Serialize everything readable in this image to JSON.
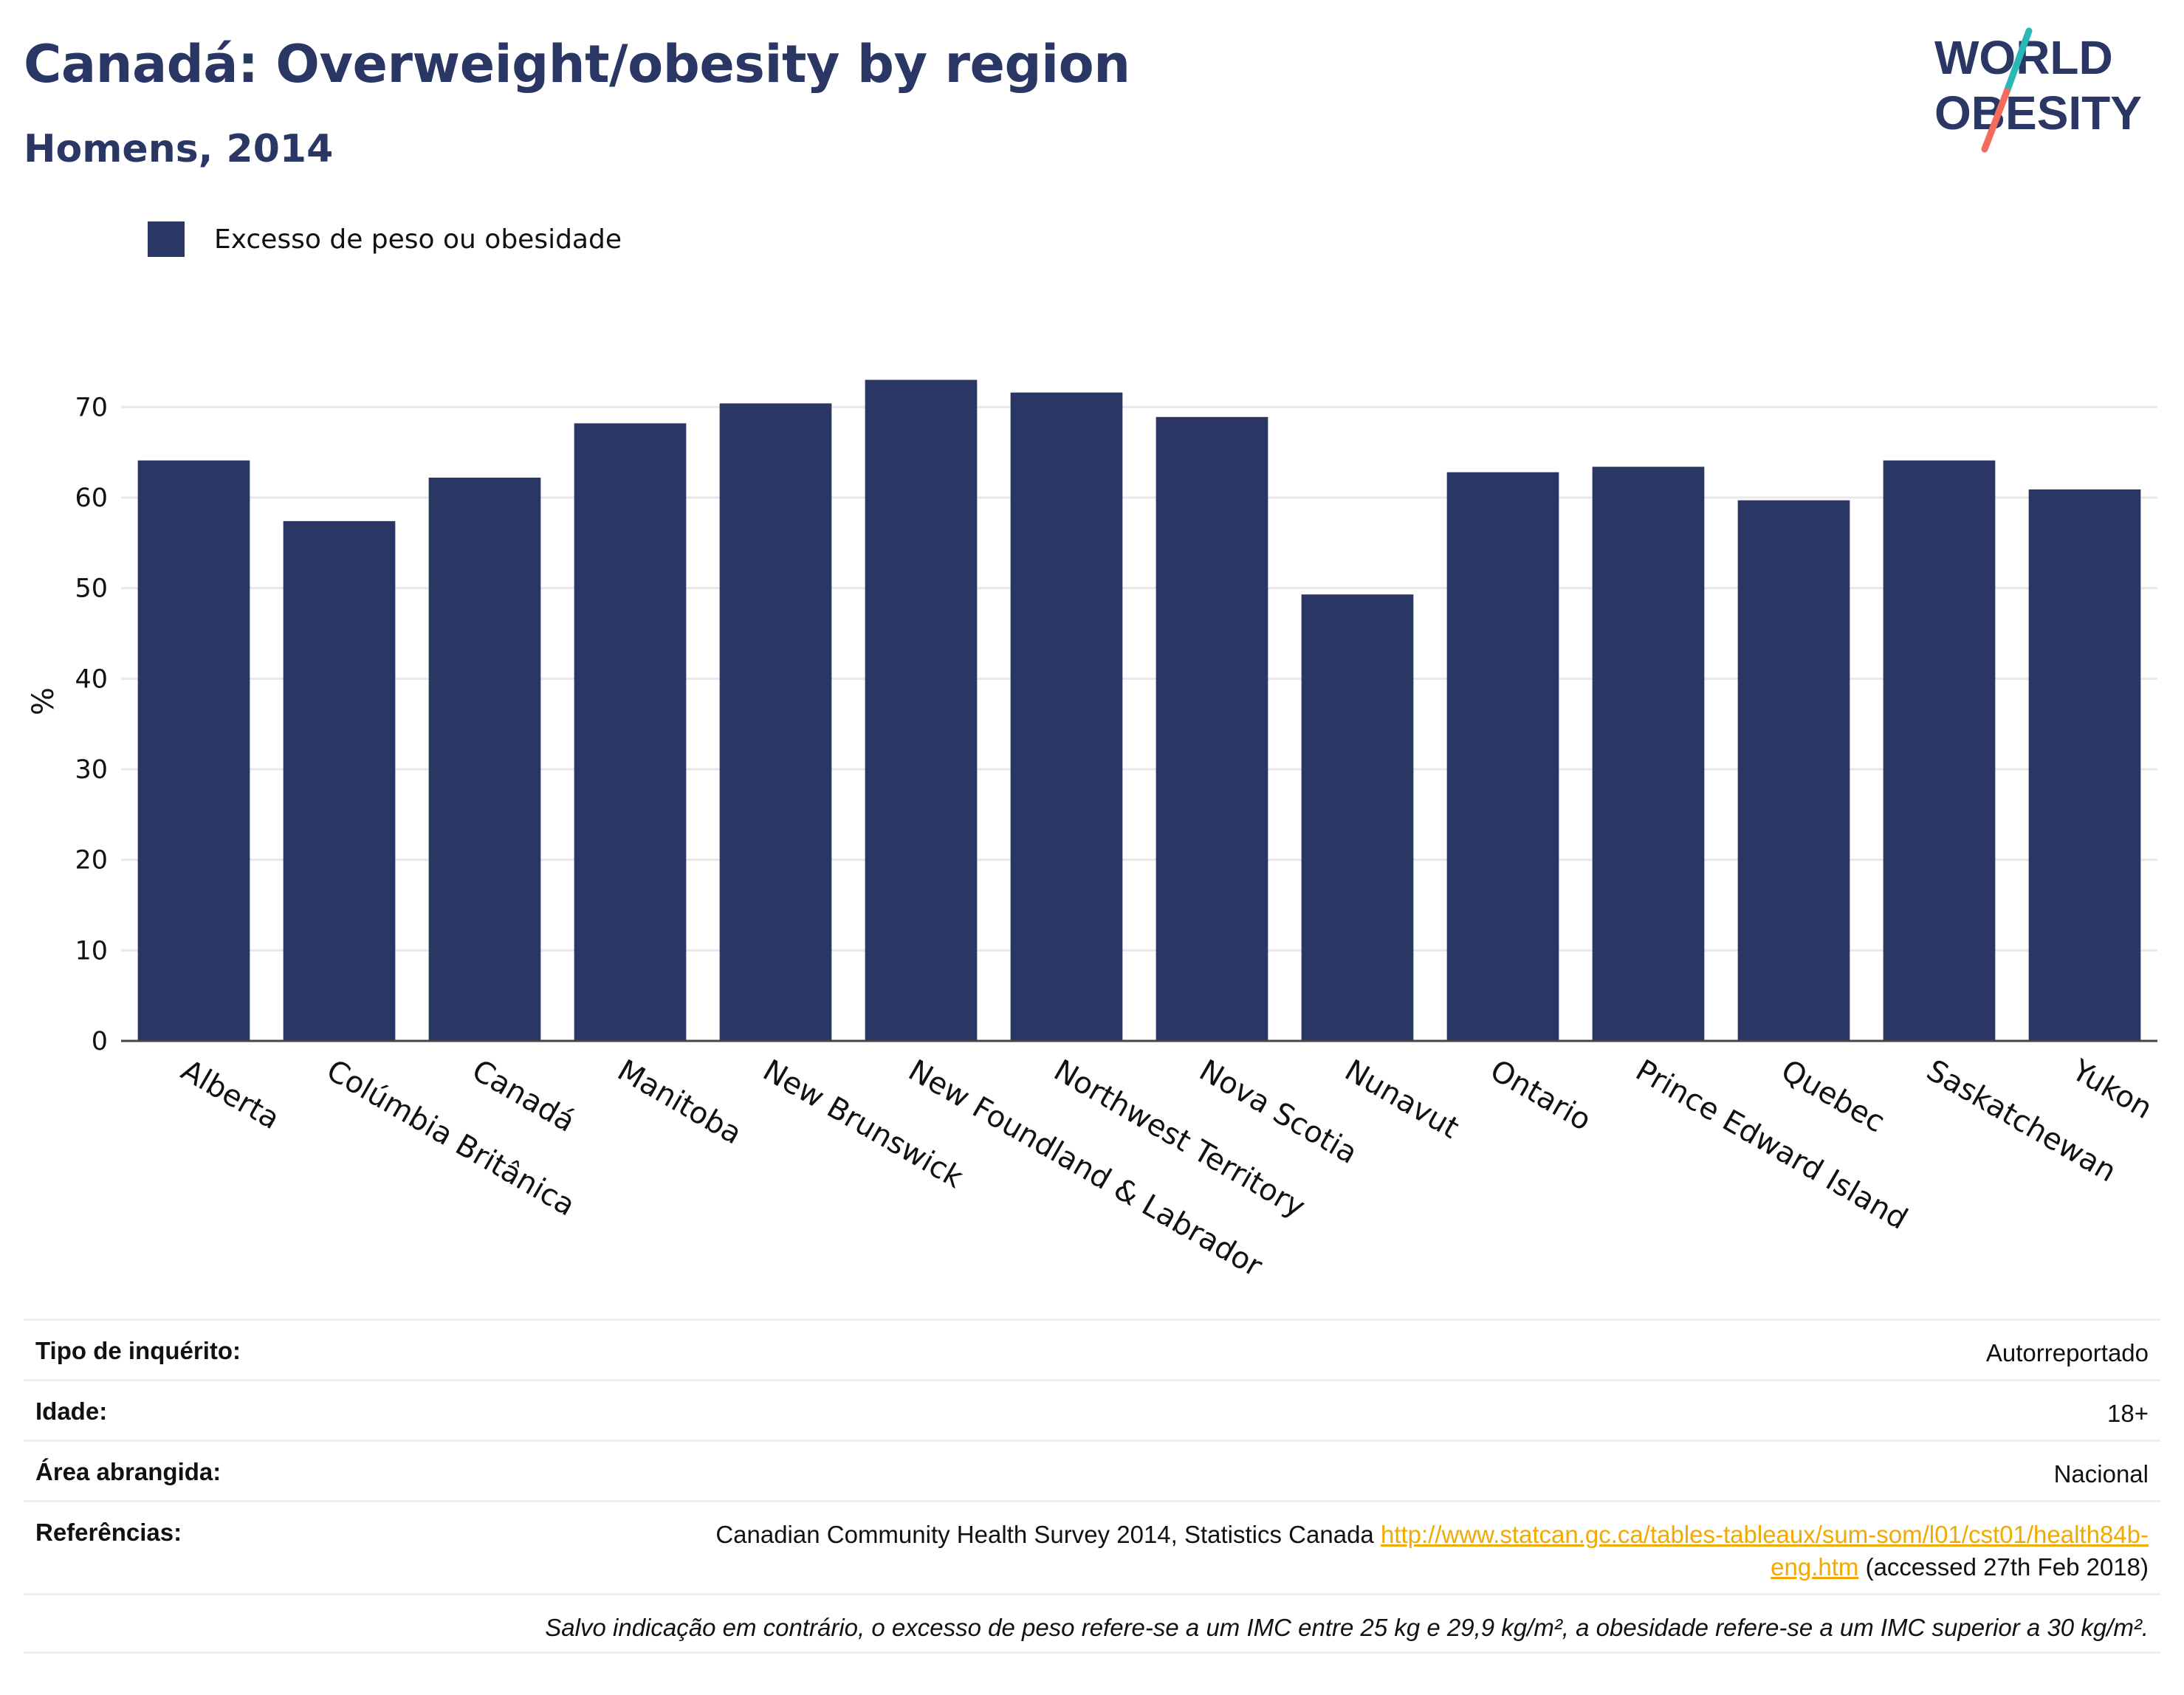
{
  "header": {
    "title": "Canadá: Overweight/obesity by region",
    "subtitle": "Homens, 2014"
  },
  "logo": {
    "line1": "WORLD",
    "line2": "OBESITY",
    "colors": {
      "text": "#2a3663",
      "slash_top": "#2ab7b5",
      "slash_bottom": "#f26b5b"
    }
  },
  "legend": {
    "label": "Excesso de peso ou obesidade",
    "color": "#2a3663"
  },
  "chart_data": {
    "type": "bar",
    "title": "Canadá: Overweight/obesity by region",
    "subtitle": "Homens, 2014",
    "ylabel": "%",
    "xlabel": "",
    "ylim": [
      0,
      75
    ],
    "yticks": [
      0,
      10,
      20,
      30,
      40,
      50,
      60,
      70
    ],
    "grid": true,
    "legend_position": "top-left",
    "bar_color": "#2a3663",
    "categories": [
      "Alberta",
      "Colúmbia Britânica",
      "Canadá",
      "Manitoba",
      "New Brunswick",
      "New Foundland & Labrador",
      "Northwest Territory",
      "Nova Scotia",
      "Nunavut",
      "Ontario",
      "Prince Edward Island",
      "Quebec",
      "Saskatchewan",
      "Yukon"
    ],
    "series": [
      {
        "name": "Excesso de peso ou obesidade",
        "values": [
          64.1,
          57.4,
          62.2,
          68.2,
          70.4,
          73.0,
          71.6,
          68.9,
          49.3,
          62.8,
          63.4,
          59.7,
          64.1,
          60.9
        ]
      }
    ]
  },
  "meta": {
    "survey_key": "Tipo de inquérito:",
    "survey_val": "Autorreportado",
    "age_key": "Idade:",
    "age_val": "18+",
    "area_key": "Área abrangida:",
    "area_val": "Nacional",
    "ref_key": "Referências:",
    "ref_text": "Canadian Community Health Survey 2014, Statistics Canada",
    "ref_link_1": "http://www.statcan.gc.ca/tables-tableaux/sum-som/l01/cst01/health84b-",
    "ref_link_2": "eng.htm",
    "ref_suffix": "(accessed 27th Feb 2018)",
    "note": "Salvo indicação em contrário, o excesso de peso refere-se a um IMC entre 25 kg e 29,9 kg/m², a obesidade refere-se a um IMC superior a 30 kg/m²."
  }
}
